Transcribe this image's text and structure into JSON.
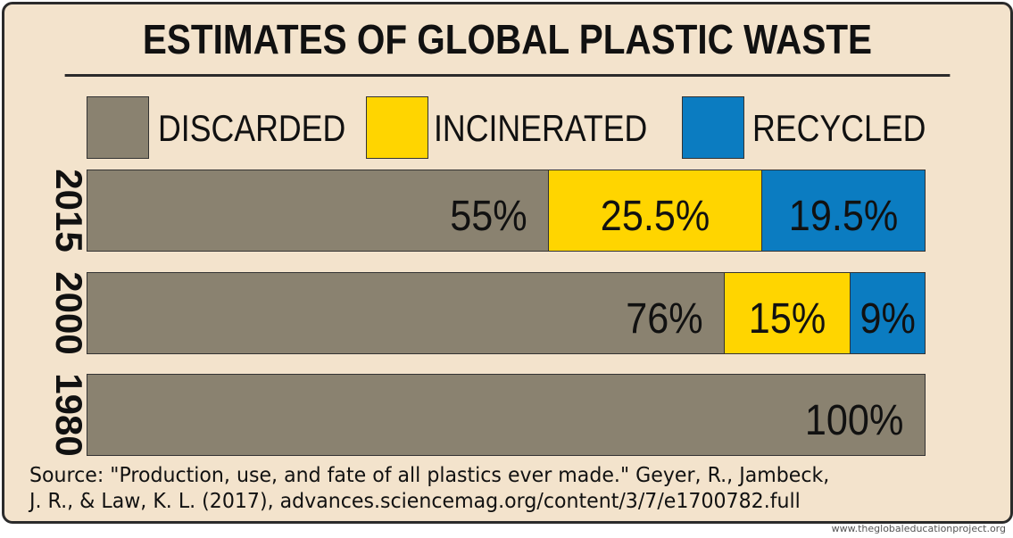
{
  "chart_data": {
    "type": "bar",
    "orientation": "horizontal",
    "stacked": true,
    "title": "ESTIMATES OF GLOBAL PLASTIC WASTE",
    "categories": [
      "2015",
      "2000",
      "1980"
    ],
    "series": [
      {
        "name": "DISCARDED",
        "color": "#8a8270",
        "values": [
          55,
          76,
          100
        ],
        "labels": [
          "55%",
          "76%",
          "100%"
        ]
      },
      {
        "name": "INCINERATED",
        "color": "#ffd500",
        "values": [
          25.5,
          15,
          0
        ],
        "labels": [
          "25.5%",
          "15%",
          ""
        ]
      },
      {
        "name": "RECYCLED",
        "color": "#0b7cc1",
        "values": [
          19.5,
          9,
          0
        ],
        "labels": [
          "19.5%",
          "9%",
          ""
        ]
      }
    ],
    "xlim": [
      0,
      100
    ],
    "unit": "%"
  },
  "source_line1": "Source: \"Production, use, and fate of all plastics ever made.\" Geyer, R., Jambeck,",
  "source_line2": "J. R., & Law, K. L. (2017), advances.sciencemag.org/content/3/7/e1700782.full",
  "credit": "www.theglobaleducationproject.org"
}
